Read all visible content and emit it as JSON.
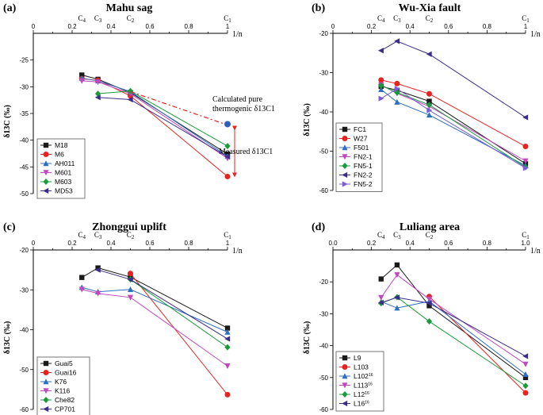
{
  "chart_data": [
    {
      "type": "line",
      "panel_label": "(a)",
      "title": "Mahu sag",
      "xlabel": "1/n",
      "ylabel": "δ13C (‰)",
      "xlim": [
        0,
        1
      ],
      "ylim": [
        -50,
        -20
      ],
      "xticks": [
        "0",
        "0.2",
        "0.4",
        "0.6",
        "0.8",
        "1"
      ],
      "yticks": [
        "-25",
        "-30",
        "-35",
        "-40",
        "-45",
        "-50"
      ],
      "carbon_labels": [
        {
          "name": "C4",
          "x": 0.25
        },
        {
          "name": "C3",
          "x": 0.333
        },
        {
          "name": "C2",
          "x": 0.5
        },
        {
          "name": "C1",
          "x": 1.0
        }
      ],
      "series": [
        {
          "name": "M18",
          "color": "#1a1a1a",
          "marker": "square",
          "x": [
            0.25,
            0.333,
            0.5,
            1.0
          ],
          "y": [
            -27.8,
            -28.6,
            -31.1,
            -42.6
          ]
        },
        {
          "name": "M6",
          "color": "#e52420",
          "marker": "circle",
          "x": [
            0.25,
            0.333,
            0.5,
            1.0
          ],
          "y": [
            -28.5,
            -28.8,
            -31.7,
            -46.8
          ]
        },
        {
          "name": "AH011",
          "color": "#2e6fbf",
          "marker": "triangle-up",
          "x": [
            0.25,
            0.333,
            0.5,
            1.0
          ],
          "y": [
            -28.4,
            -28.9,
            -30.9,
            -43.0
          ]
        },
        {
          "name": "M601",
          "color": "#c048c0",
          "marker": "triangle-down",
          "x": [
            0.25,
            0.333,
            0.5,
            1.0
          ],
          "y": [
            -28.9,
            -29.1,
            -31.3,
            -43.4
          ]
        },
        {
          "name": "M603",
          "color": "#1a9a3a",
          "marker": "diamond",
          "x": [
            0.333,
            0.5,
            1.0
          ],
          "y": [
            -31.3,
            -30.8,
            -41.1
          ]
        },
        {
          "name": "MD53",
          "color": "#3b2e8a",
          "marker": "triangle-left",
          "x": [
            0.333,
            0.5,
            1.0
          ],
          "y": [
            -32.0,
            -32.4,
            -43.1
          ]
        }
      ],
      "calculated_line": {
        "x": [
          0.5,
          1.0
        ],
        "y": [
          -30.9,
          -37.0
        ]
      },
      "calculated_point": {
        "x": 1.0,
        "y": -37.0
      },
      "annotations": [
        "Calculated pure",
        "thermogenic δ13C1",
        "Measured δ13C1"
      ]
    },
    {
      "type": "line",
      "panel_label": "(b)",
      "title": "Wu-Xia fault",
      "xlabel": "1/n",
      "ylabel": "δ13C (‰)",
      "xlim": [
        0,
        1
      ],
      "ylim": [
        -60,
        -20
      ],
      "xticks": [
        "0",
        "0.2",
        "0.4",
        "0.6",
        "0.8",
        "1"
      ],
      "yticks": [
        "-20",
        "-30",
        "-40",
        "-50",
        "-60"
      ],
      "carbon_labels": [
        {
          "name": "C4",
          "x": 0.25
        },
        {
          "name": "C3",
          "x": 0.333
        },
        {
          "name": "C2",
          "x": 0.5
        },
        {
          "name": "C1",
          "x": 1.0
        }
      ],
      "series": [
        {
          "name": "FC1",
          "color": "#1a1a1a",
          "marker": "square",
          "x": [
            0.25,
            0.333,
            0.5,
            1.0
          ],
          "y": [
            -33.5,
            -34.5,
            -37.3,
            -53.2
          ]
        },
        {
          "name": "W27",
          "color": "#e52420",
          "marker": "circle",
          "x": [
            0.25,
            0.333,
            0.5,
            1.0
          ],
          "y": [
            -31.9,
            -32.8,
            -35.4,
            -48.8
          ]
        },
        {
          "name": "F501",
          "color": "#2e6fbf",
          "marker": "triangle-up",
          "x": [
            0.25,
            0.333,
            0.5,
            1.0
          ],
          "y": [
            -34.3,
            -37.5,
            -40.8,
            -53.7
          ]
        },
        {
          "name": "FN2-1",
          "color": "#c048c0",
          "marker": "triangle-down",
          "x": [
            0.25,
            0.333,
            0.5,
            1.0
          ],
          "y": [
            -33.1,
            -35.3,
            -38.6,
            -52.5
          ]
        },
        {
          "name": "FN5-1",
          "color": "#1a9a3a",
          "marker": "diamond",
          "x": [
            0.25,
            0.333,
            0.5,
            1.0
          ],
          "y": [
            -33.3,
            -35.1,
            -38.2,
            -54.1
          ]
        },
        {
          "name": "FN2-2",
          "color": "#3b2e8a",
          "marker": "triangle-left",
          "x": [
            0.25,
            0.333,
            0.5,
            1.0
          ],
          "y": [
            -24.4,
            -22.0,
            -25.3,
            -41.4
          ]
        },
        {
          "name": "FN5-2",
          "color": "#7a5dd6",
          "marker": "triangle-right",
          "x": [
            0.25,
            0.333,
            0.5,
            1.0
          ],
          "y": [
            -36.6,
            -34.1,
            -39.6,
            -54.3
          ]
        }
      ]
    },
    {
      "type": "line",
      "panel_label": "(c)",
      "title": "Zhonggui uplift",
      "xlabel": "1/n",
      "ylabel": "δ13C (‰)",
      "xlim": [
        0,
        1
      ],
      "ylim": [
        -60,
        -20
      ],
      "xticks": [
        "0",
        "0.2",
        "0.4",
        "0.6",
        "0.8",
        "1"
      ],
      "yticks": [
        "-20",
        "-30",
        "-40",
        "-50",
        "-60"
      ],
      "carbon_labels": [
        {
          "name": "C4",
          "x": 0.25
        },
        {
          "name": "C3",
          "x": 0.333
        },
        {
          "name": "C2",
          "x": 0.5
        },
        {
          "name": "C1",
          "x": 1.0
        }
      ],
      "series": [
        {
          "name": "Guai5",
          "color": "#1a1a1a",
          "marker": "square",
          "x": [
            0.25,
            0.333,
            0.5,
            1.0
          ],
          "y": [
            -26.9,
            -24.5,
            -26.8,
            -39.6
          ]
        },
        {
          "name": "Guai16",
          "color": "#e52420",
          "marker": "circle",
          "x": [
            0.5,
            1.0
          ],
          "y": [
            -25.9,
            -56.3
          ]
        },
        {
          "name": "K76",
          "color": "#2e6fbf",
          "marker": "triangle-up",
          "x": [
            0.25,
            0.333,
            0.5,
            1.0
          ],
          "y": [
            -29.4,
            -30.5,
            -29.9,
            -40.6
          ]
        },
        {
          "name": "K116",
          "color": "#c048c0",
          "marker": "triangle-down",
          "x": [
            0.25,
            0.333,
            0.5,
            1.0
          ],
          "y": [
            -29.9,
            -30.9,
            -31.9,
            -49.1
          ]
        },
        {
          "name": "Che82",
          "color": "#1a9a3a",
          "marker": "diamond",
          "x": [
            0.5,
            1.0
          ],
          "y": [
            -27.4,
            -44.4
          ]
        },
        {
          "name": "CP701",
          "color": "#3b2e8a",
          "marker": "triangle-left",
          "x": [
            0.333,
            0.5,
            1.0
          ],
          "y": [
            -25.0,
            -27.4,
            -42.3
          ]
        }
      ]
    },
    {
      "type": "line",
      "panel_label": "(d)",
      "title": "Luliang area",
      "xlabel": "1/n",
      "ylabel": "δ13C (‰)",
      "xlim": [
        0,
        1
      ],
      "ylim": [
        -60,
        -10
      ],
      "xticks": [
        "0.0",
        "0.2",
        "0.4",
        "0.6",
        "0.8",
        "1.0"
      ],
      "yticks": [
        "-20",
        "-30",
        "-40",
        "-50",
        "-60"
      ],
      "carbon_labels": [
        {
          "name": "C4",
          "x": 0.25
        },
        {
          "name": "C3",
          "x": 0.333
        },
        {
          "name": "C2",
          "x": 0.5
        },
        {
          "name": "C1",
          "x": 1.0
        }
      ],
      "series": [
        {
          "name": "L9",
          "color": "#1a1a1a",
          "marker": "square",
          "x": [
            0.25,
            0.333,
            0.5,
            1.0
          ],
          "y": [
            -19.1,
            -14.7,
            -27.5,
            -50.0
          ]
        },
        {
          "name": "L103",
          "color": "#e52420",
          "marker": "circle",
          "x": [
            0.5,
            1.0
          ],
          "y": [
            -24.6,
            -54.8
          ]
        },
        {
          "name": "L102",
          "sup": "16",
          "color": "#2e6fbf",
          "marker": "triangle-up",
          "x": [
            0.25,
            0.333,
            0.5,
            1.0
          ],
          "y": [
            -26.2,
            -28.2,
            -26.1,
            -49.0
          ]
        },
        {
          "name": "L113",
          "sup": "16",
          "color": "#c048c0",
          "marker": "triangle-down",
          "x": [
            0.25,
            0.333,
            0.5,
            1.0
          ],
          "y": [
            -24.9,
            -17.8,
            -25.4,
            -45.8
          ]
        },
        {
          "name": "L12",
          "sup": "16",
          "color": "#1a9a3a",
          "marker": "diamond",
          "x": [
            0.25,
            0.333,
            0.5,
            1.0
          ],
          "y": [
            -26.7,
            -24.8,
            -32.4,
            -52.6
          ]
        },
        {
          "name": "L16",
          "sup": "16",
          "color": "#3b2e8a",
          "marker": "triangle-left",
          "x": [
            0.25,
            0.333,
            0.5,
            1.0
          ],
          "y": [
            -26.5,
            -24.9,
            -26.7,
            -43.3
          ]
        }
      ]
    }
  ]
}
